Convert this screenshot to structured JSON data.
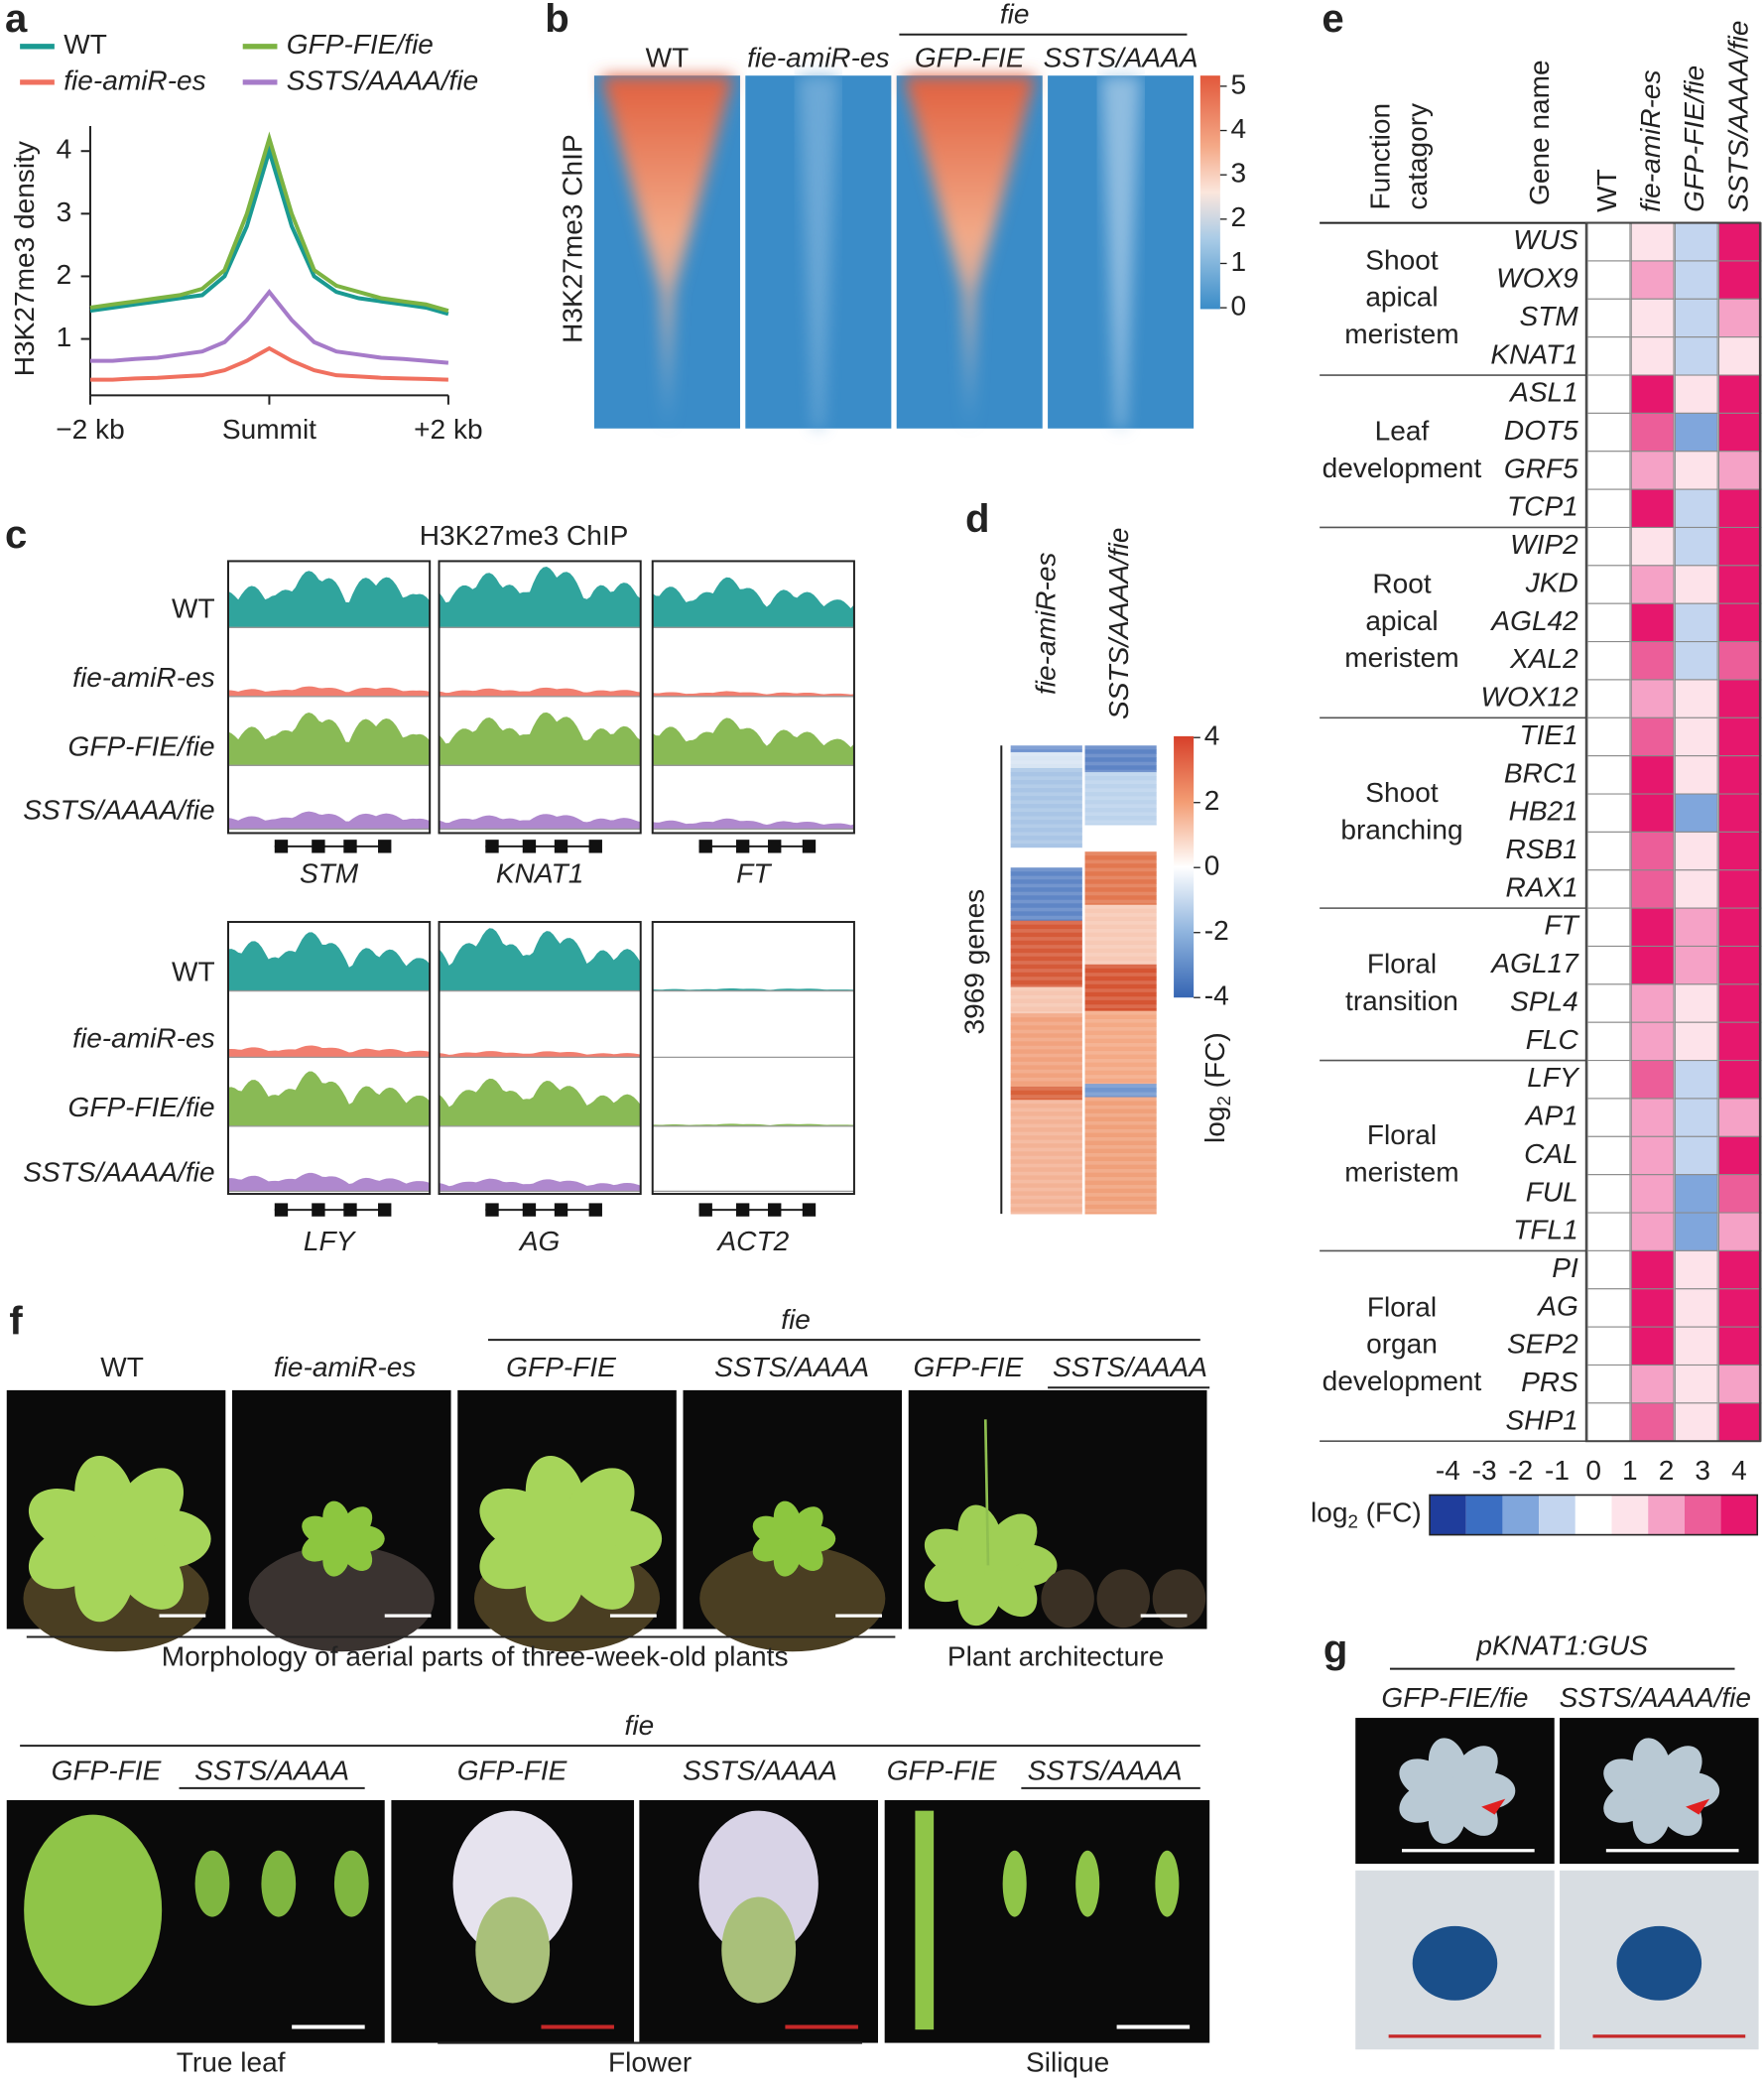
{
  "panel_labels": [
    "a",
    "b",
    "c",
    "d",
    "e",
    "f",
    "g"
  ],
  "chart_data": {
    "type": "line",
    "ylabel": "H3K27me3 density",
    "x": [
      -2,
      -1.75,
      -1.5,
      -1.25,
      -1,
      -0.75,
      -0.5,
      -0.25,
      0,
      0.25,
      0.5,
      0.75,
      1,
      1.25,
      1.5,
      1.75,
      2
    ],
    "xlim": [
      -2,
      2
    ],
    "xticks": [
      {
        "value": -2,
        "label": "−2 kb"
      },
      {
        "value": 0,
        "label": "Summit"
      },
      {
        "value": 2,
        "label": "+2 kb"
      }
    ],
    "ylim": [
      0.1,
      4.4
    ],
    "yticks": [
      1,
      2,
      3,
      4
    ],
    "series": [
      {
        "name": "WT",
        "color": "#1a9a92",
        "values": [
          1.45,
          1.5,
          1.55,
          1.6,
          1.65,
          1.7,
          2.0,
          2.8,
          4.0,
          2.8,
          2.0,
          1.75,
          1.65,
          1.6,
          1.55,
          1.5,
          1.4
        ]
      },
      {
        "name": "fie-amiR-es",
        "color": "#f0705f",
        "values": [
          0.35,
          0.35,
          0.37,
          0.38,
          0.4,
          0.42,
          0.5,
          0.65,
          0.85,
          0.65,
          0.5,
          0.42,
          0.4,
          0.38,
          0.37,
          0.36,
          0.35
        ]
      },
      {
        "name": "GFP-FIE/fie",
        "color": "#7cb342",
        "values": [
          1.5,
          1.55,
          1.6,
          1.65,
          1.7,
          1.8,
          2.1,
          3.0,
          4.2,
          3.0,
          2.1,
          1.85,
          1.75,
          1.65,
          1.6,
          1.55,
          1.45
        ]
      },
      {
        "name": "SSTS/AAAA/fie",
        "color": "#a67bc9",
        "values": [
          0.65,
          0.65,
          0.68,
          0.7,
          0.75,
          0.8,
          0.95,
          1.3,
          1.75,
          1.3,
          0.95,
          0.8,
          0.75,
          0.7,
          0.68,
          0.65,
          0.62
        ]
      }
    ]
  },
  "panel_b": {
    "group_label": "fie",
    "columns": [
      "WT",
      "fie-amiR-es",
      "GFP-FIE",
      "SSTS/AAAA"
    ],
    "ylabel": "H3K27me3 ChIP",
    "colorbar_ticks": [
      0,
      1,
      2,
      3,
      4,
      5
    ]
  },
  "panel_c": {
    "title": "H3K27me3 ChIP",
    "rows": [
      "WT",
      "fie-amiR-es",
      "GFP-FIE/fie",
      "SSTS/AAAA/fie"
    ],
    "top_genes": [
      "STM",
      "KNAT1",
      "FT"
    ],
    "bottom_genes": [
      "LFY",
      "AG",
      "ACT2"
    ]
  },
  "panel_d": {
    "columns": [
      "fie-amiR-es",
      "SSTS/AAAA/fie"
    ],
    "genes_label": "3969 genes",
    "colorbar_ticks": [
      4,
      2,
      0,
      -2,
      -4
    ],
    "colorbar_label": [
      "log",
      "2",
      " (FC)"
    ]
  },
  "panel_e": {
    "header": {
      "function": [
        "Function",
        "catagory"
      ],
      "gene": "Gene name",
      "columns": [
        "WT",
        "fie-amiR-es",
        "GFP-FIE/fie",
        "SSTS/AAAA/fie"
      ]
    },
    "groups": [
      {
        "category": [
          "Shoot",
          "apical",
          "meristem"
        ],
        "genes": [
          {
            "name": "WUS",
            "values": [
              0,
              1,
              -1,
              4
            ]
          },
          {
            "name": "WOX9",
            "values": [
              0,
              2,
              -1,
              4
            ]
          },
          {
            "name": "STM",
            "values": [
              0,
              1,
              -1,
              2
            ]
          },
          {
            "name": "KNAT1",
            "values": [
              0,
              1,
              -1,
              1
            ]
          }
        ]
      },
      {
        "category": [
          "Leaf",
          "development"
        ],
        "genes": [
          {
            "name": "ASL1",
            "values": [
              0,
              4,
              1,
              4
            ]
          },
          {
            "name": "DOT5",
            "values": [
              0,
              3,
              -2,
              4
            ]
          },
          {
            "name": "GRF5",
            "values": [
              0,
              2,
              1,
              2
            ]
          },
          {
            "name": "TCP1",
            "values": [
              0,
              4,
              -1,
              4
            ]
          }
        ]
      },
      {
        "category": [
          "Root",
          "apical",
          "meristem"
        ],
        "genes": [
          {
            "name": "WIP2",
            "values": [
              0,
              1,
              -1,
              4
            ]
          },
          {
            "name": "JKD",
            "values": [
              0,
              2,
              1,
              4
            ]
          },
          {
            "name": "AGL42",
            "values": [
              0,
              4,
              -1,
              4
            ]
          },
          {
            "name": "XAL2",
            "values": [
              0,
              3,
              -1,
              3
            ]
          },
          {
            "name": "WOX12",
            "values": [
              0,
              2,
              1,
              4
            ]
          }
        ]
      },
      {
        "category": [
          "Shoot",
          "branching"
        ],
        "genes": [
          {
            "name": "TIE1",
            "values": [
              0,
              3,
              1,
              4
            ]
          },
          {
            "name": "BRC1",
            "values": [
              0,
              4,
              1,
              4
            ]
          },
          {
            "name": "HB21",
            "values": [
              0,
              4,
              -2,
              4
            ]
          },
          {
            "name": "RSB1",
            "values": [
              0,
              3,
              1,
              4
            ]
          },
          {
            "name": "RAX1",
            "values": [
              0,
              3,
              1,
              4
            ]
          }
        ]
      },
      {
        "category": [
          "Floral",
          "transition"
        ],
        "genes": [
          {
            "name": "FT",
            "values": [
              0,
              4,
              2,
              4
            ]
          },
          {
            "name": "AGL17",
            "values": [
              0,
              4,
              2,
              4
            ]
          },
          {
            "name": "SPL4",
            "values": [
              0,
              2,
              1,
              4
            ]
          },
          {
            "name": "FLC",
            "values": [
              0,
              2,
              1,
              4
            ]
          }
        ]
      },
      {
        "category": [
          "Floral",
          "meristem"
        ],
        "genes": [
          {
            "name": "LFY",
            "values": [
              0,
              3,
              -1,
              4
            ]
          },
          {
            "name": "AP1",
            "values": [
              0,
              2,
              -1,
              2
            ]
          },
          {
            "name": "CAL",
            "values": [
              0,
              2,
              -1,
              4
            ]
          },
          {
            "name": "FUL",
            "values": [
              0,
              2,
              -2,
              3
            ]
          },
          {
            "name": "TFL1",
            "values": [
              0,
              2,
              -2,
              2
            ]
          }
        ]
      },
      {
        "category": [
          "Floral",
          "organ",
          "development"
        ],
        "genes": [
          {
            "name": "PI",
            "values": [
              0,
              4,
              1,
              4
            ]
          },
          {
            "name": "AG",
            "values": [
              0,
              4,
              1,
              4
            ]
          },
          {
            "name": "SEP2",
            "values": [
              0,
              4,
              1,
              4
            ]
          },
          {
            "name": "PRS",
            "values": [
              0,
              2,
              1,
              2
            ]
          },
          {
            "name": "SHP1",
            "values": [
              0,
              3,
              1,
              4
            ]
          }
        ]
      }
    ],
    "colorbar": {
      "ticks": [
        -4,
        -3,
        -2,
        -1,
        0,
        1,
        2,
        3,
        4
      ],
      "colors": [
        "#1f3d9c",
        "#3b6ec2",
        "#80a6dc",
        "#c3d5ef",
        "#ffffff",
        "#fde3ea",
        "#f5a2c6",
        "#ec5e99",
        "#e6176d"
      ],
      "label": [
        "log",
        "2",
        " (FC)"
      ]
    }
  },
  "panel_f": {
    "group_top": "fie",
    "top_labels": [
      "WT",
      "fie-amiR-es",
      "GFP-FIE",
      "SSTS/AAAA",
      "GFP-FIE",
      "SSTS/AAAA"
    ],
    "caption_morphology": "Morphology of aerial parts of three-week-old plants",
    "caption_architecture": "Plant architecture",
    "group_bottom": "fie",
    "bottom_labels": [
      "GFP-FIE",
      "SSTS/AAAA",
      "GFP-FIE",
      "SSTS/AAAA",
      "GFP-FIE",
      "SSTS/AAAA"
    ],
    "captions": [
      "True leaf",
      "Flower",
      "Silique"
    ]
  },
  "panel_g": {
    "title": "pKNAT1:GUS",
    "labels": [
      "GFP-FIE/fie",
      "SSTS/AAAA/fie"
    ]
  }
}
